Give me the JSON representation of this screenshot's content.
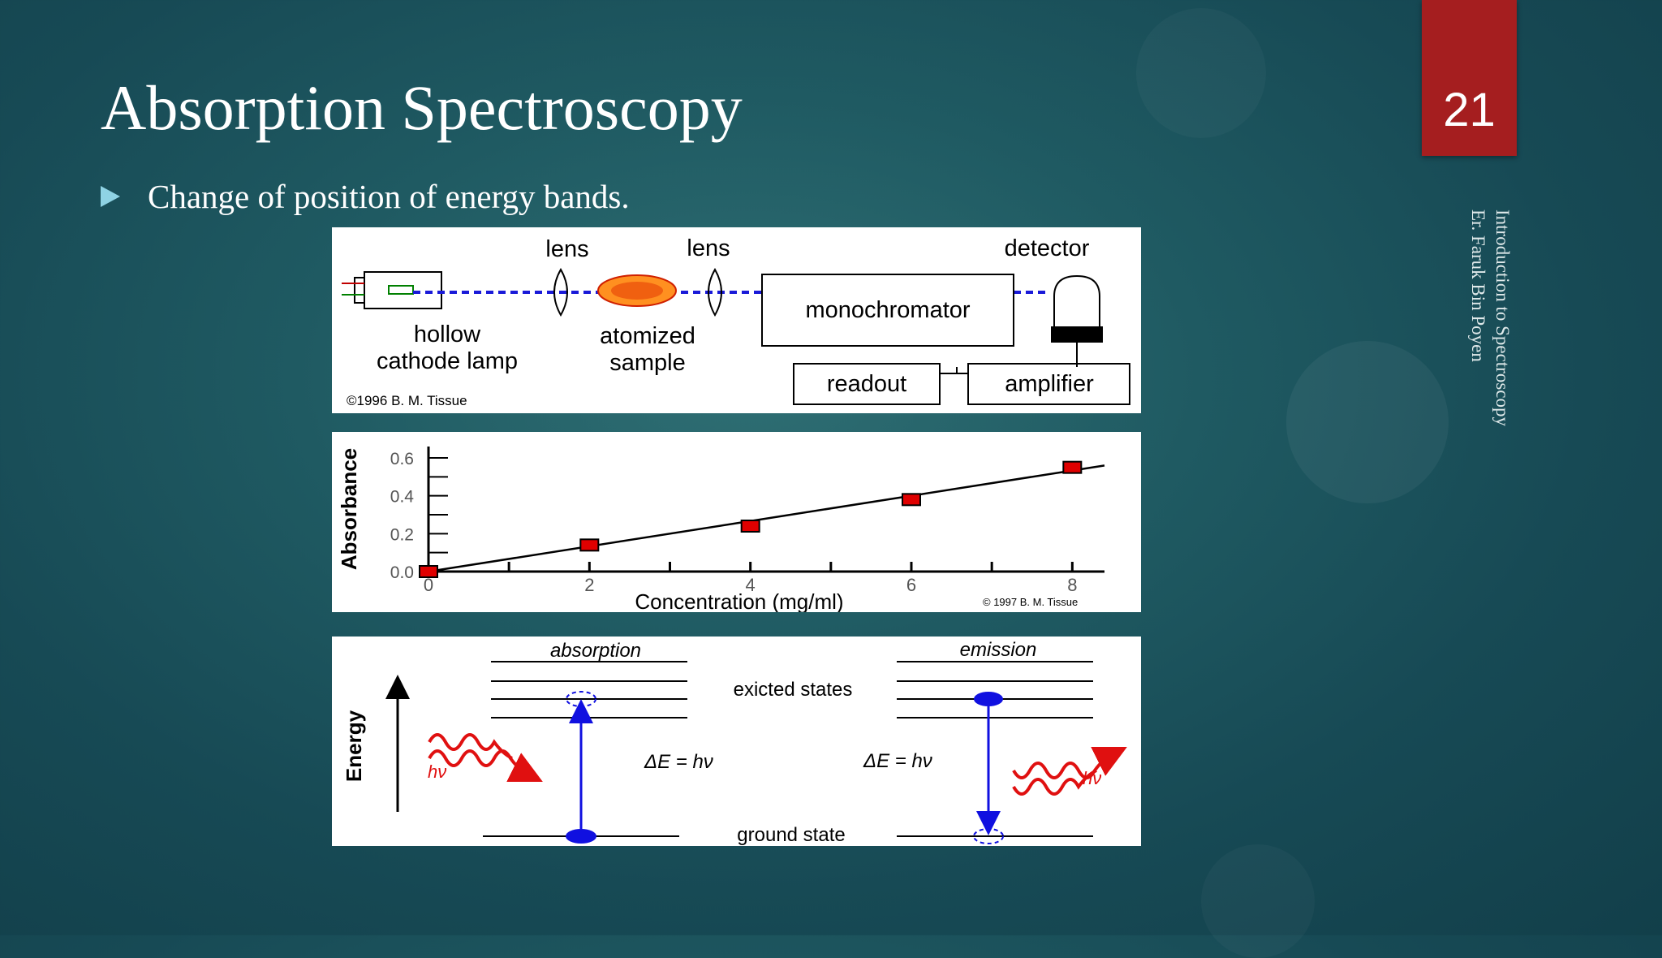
{
  "slide": {
    "title": "Absorption Spectroscopy",
    "page_number": "21",
    "bullet": "Change of position of energy bands.",
    "footer_lines": [
      "Introduction to Spectroscopy",
      "Er. Faruk Bin Poyen"
    ]
  },
  "instrument_diagram": {
    "labels": {
      "lens_left": "lens",
      "lens_right": "lens",
      "detector": "detector",
      "monochromator": "monochromator",
      "lamp_line1": "hollow",
      "lamp_line2": "cathode lamp",
      "sample_line1": "atomized",
      "sample_line2": "sample",
      "readout": "readout",
      "amplifier": "amplifier",
      "copyright": "©1996 B. M. Tissue"
    }
  },
  "chart_data": {
    "type": "scatter",
    "xlabel": "Concentration (mg/ml)",
    "ylabel": "Absorbance",
    "xlim": [
      0,
      8.4
    ],
    "ylim": [
      0,
      0.6
    ],
    "x_ticks": [
      0,
      2,
      4,
      6,
      8
    ],
    "y_ticks": [
      0.0,
      0.2,
      0.4,
      0.6
    ],
    "y_tick_labels": [
      "0.0",
      "0.2",
      "0.4",
      "0.6"
    ],
    "points": [
      {
        "x": 0,
        "y": 0.0
      },
      {
        "x": 2,
        "y": 0.14
      },
      {
        "x": 4,
        "y": 0.24
      },
      {
        "x": 6,
        "y": 0.38
      },
      {
        "x": 8,
        "y": 0.55
      }
    ],
    "fit_line": {
      "x": [
        0,
        8.4
      ],
      "y": [
        0,
        0.56
      ]
    },
    "marker_color": "#e00000",
    "copyright": "© 1997 B. M. Tissue"
  },
  "energy_diagram": {
    "labels": {
      "absorption": "absorption",
      "emission": "emission",
      "excited_states": "exicted states",
      "ground_state": "ground state",
      "energy_axis": "Energy",
      "delta_left": "ΔE = hν",
      "delta_right": "ΔE = hν",
      "hv_left": "hν",
      "hv_right": "hν"
    },
    "colors": {
      "transition": "#1010e0",
      "photon": "#e01010"
    }
  }
}
